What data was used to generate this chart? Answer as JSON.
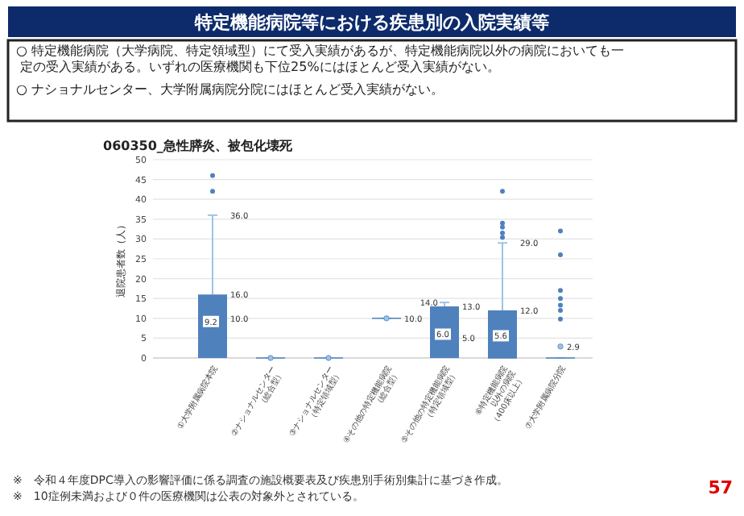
{
  "chart_data": {
    "type": "box",
    "title": "特定機能病院等における疾患別の入院実績等",
    "subtitle": "060350_急性膵炎、被包化壊死",
    "ylabel": "退院患者数（人）",
    "categories": [
      "①大学附属病院本院",
      "②ナショナルセンター\n（総合型）",
      "③ナショナルセンター\n（特定領域型）",
      "④その他の特定機能病院\n（総合型）",
      "⑤その他の特定機能病院\n（特定領域型）",
      "⑥特定機能病院\n以外の病院\n（400床以上）",
      "⑦大学附属病院分院"
    ],
    "color": "#4f81bd",
    "boxes": [
      {
        "low": 0,
        "q1": 0,
        "median": 10,
        "q3": 16,
        "high": 36,
        "mean": 9.2,
        "outliers": [
          42,
          46
        ]
      },
      {
        "low": 0,
        "q1": 0,
        "median": 0,
        "q3": 0,
        "high": 0,
        "mean": 0
      },
      {
        "low": 0,
        "q1": 0,
        "median": 0,
        "q3": 0,
        "high": 0,
        "mean": 0
      },
      {
        "low": 10,
        "q1": 10,
        "median": 10,
        "q3": 10,
        "high": 10,
        "mean": 10
      },
      {
        "low": 0,
        "q1": 0,
        "median": 5,
        "q3": 13,
        "high": 14,
        "mean": 6
      },
      {
        "low": 0,
        "q1": 0,
        "median": 0,
        "q3": 12,
        "high": 29,
        "mean": 5.6,
        "outliers": [
          30.4,
          31.5,
          33,
          34,
          42
        ]
      },
      {
        "low": 0,
        "q1": 0,
        "median": 0,
        "q3": 0,
        "high": 0,
        "mean": 2.9,
        "outliers": [
          9.8,
          12,
          13.3,
          15,
          17,
          26,
          32
        ]
      }
    ],
    "ylim": [
      0,
      50
    ],
    "yticks": [
      0,
      5,
      10,
      15,
      20,
      25,
      30,
      35,
      40,
      45,
      50
    ],
    "grid": "y",
    "annotations": [
      "○ 特定機能病院（大学病院、特定領域型）にて受入実績があるが、特定機能病院以外の病院においても一定の受入実績がある。いずれの医療機関も下位25%にはほとんど受入実績がない。",
      "○ ナショナルセンター、大学附属病院分院にはほとんど受入実績がない。",
      "※　令和４年度DPC導入の影響評価に係る調査の施設概要表及び疾患別手術別集計に基づき作成。",
      "※　10症例未満および０件の医療機関は公表の対象外とされている。",
      "57",
      {
        "text": "36.0",
        "x": "①大学附属病院本院",
        "y": 36
      },
      {
        "text": "16.0",
        "x": "①大学附属病院本院",
        "y": 16
      },
      {
        "text": "10.0",
        "x": "①大学附属病院本院",
        "y": 10
      },
      {
        "text": "9.2",
        "x": "①大学附属病院本院",
        "y": 9.2
      },
      {
        "text": "10.0",
        "x": "④その他の特定機能病院\n（総合型）",
        "y": 10
      },
      {
        "text": "14.0",
        "x": "⑤その他の特定機能病院\n（特定領域型）",
        "y": 14
      },
      {
        "text": "13.0",
        "x": "⑤その他の特定機能病院\n（特定領域型）",
        "y": 13
      },
      {
        "text": "6.0",
        "x": "⑤その他の特定機能病院\n（特定領域型）",
        "y": 6
      },
      {
        "text": "5.0",
        "x": "⑤その他の特定機能病院\n（特定領域型）",
        "y": 5
      },
      {
        "text": "29.0",
        "x": "⑥特定機能病院\n以外の病院\n（400床以上）",
        "y": 29
      },
      {
        "text": "12.0",
        "x": "⑥特定機能病院\n以外の病院\n（400床以上）",
        "y": 12
      },
      {
        "text": "5.6",
        "x": "⑥特定機能病院\n以外の病院\n（400床以上）",
        "y": 5.6
      },
      "2.9"
    ]
  }
}
